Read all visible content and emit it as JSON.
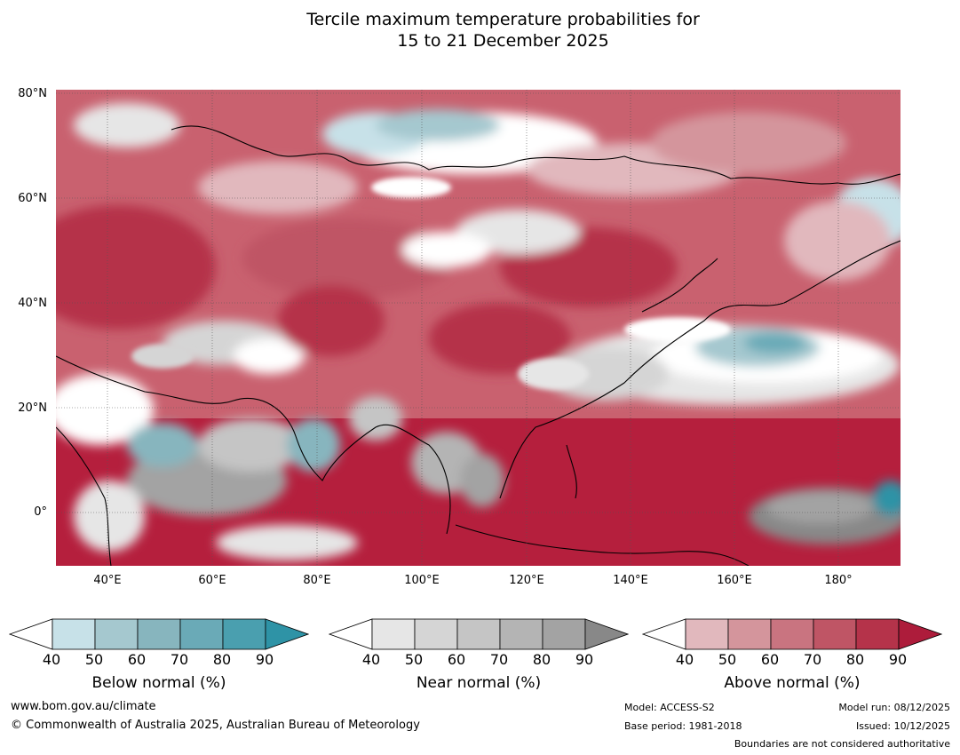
{
  "title": {
    "line1": "Tercile maximum temperature probabilities for",
    "line2": "15 to 21 December 2025"
  },
  "map": {
    "region": "Asia and Western Pacific",
    "lat_labels": [
      "80°N",
      "60°N",
      "40°N",
      "20°N",
      "0°"
    ],
    "lon_labels": [
      "40°E",
      "60°E",
      "80°E",
      "100°E",
      "120°E",
      "140°E",
      "160°E",
      "180°"
    ]
  },
  "colorbars": [
    {
      "label": "Below normal (%)",
      "ticks": [
        "40",
        "50",
        "60",
        "70",
        "80",
        "90"
      ],
      "colors": [
        "#ffffff",
        "#c7e1e8",
        "#a5c8cf",
        "#87b5be",
        "#6aaab7",
        "#4a9faf",
        "#2e93a6"
      ]
    },
    {
      "label": "Near normal (%)",
      "ticks": [
        "40",
        "50",
        "60",
        "70",
        "80",
        "90"
      ],
      "colors": [
        "#ffffff",
        "#e6e6e6",
        "#d5d5d5",
        "#c5c5c5",
        "#b4b4b4",
        "#a3a3a3",
        "#888888"
      ]
    },
    {
      "label": "Above normal (%)",
      "ticks": [
        "40",
        "50",
        "60",
        "70",
        "80",
        "90"
      ],
      "colors": [
        "#ffffff",
        "#e1b8bd",
        "#d4959c",
        "#c97480",
        "#bf5565",
        "#b5334a",
        "#ad1c3b"
      ]
    }
  ],
  "footer": {
    "website": "www.bom.gov.au/climate",
    "copyright": "© Commonwealth of Australia 2025, Australian Bureau of Meteorology",
    "model": "Model: ACCESS-S2",
    "base_period": "Base period: 1981-2018",
    "model_run": "Model run: 08/12/2025",
    "issued": "Issued: 10/12/2025",
    "disclaimer": "Boundaries are not considered authoritative"
  }
}
